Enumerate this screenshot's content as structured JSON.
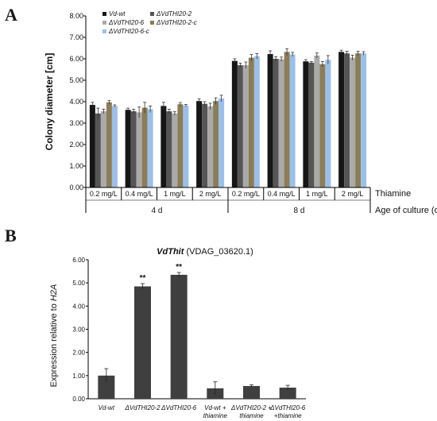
{
  "panels": {
    "a": "A",
    "b": "B"
  },
  "chart_data": [
    {
      "type": "bar",
      "ylabel": "Colony diameter [cm]",
      "ylim": [
        0,
        8
      ],
      "yticks": [
        "0.00",
        "1.00",
        "2.00",
        "3.00",
        "4.00",
        "5.00",
        "6.00",
        "7.00",
        "8.00"
      ],
      "categories": [
        "0.2 mg/L",
        "0.4 mg/L",
        "1 mg/L",
        "2 mg/L",
        "0.2 mg/L",
        "0.4 mg/L",
        "1 mg/L",
        "2 mg/L"
      ],
      "factor_label": "Thiamine",
      "groups": [
        "4 d",
        "8 d"
      ],
      "group_label": "Age of culture (days)",
      "legend_placement": "top-left",
      "series": [
        {
          "name": "Vd-wt",
          "color": "#161616",
          "values": [
            3.85,
            3.62,
            3.8,
            4.03,
            5.9,
            6.22,
            5.88,
            6.32
          ],
          "errors": [
            0.12,
            0.08,
            0.17,
            0.1,
            0.1,
            0.15,
            0.08,
            0.08
          ]
        },
        {
          "name": "ΔVdTHI20-2",
          "color": "#555555",
          "values": [
            3.45,
            3.55,
            3.55,
            3.9,
            5.7,
            6.0,
            5.82,
            6.25
          ],
          "errors": [
            0.25,
            0.1,
            0.1,
            0.1,
            0.1,
            0.1,
            0.05,
            0.1
          ]
        },
        {
          "name": "ΔVdTHI20-6",
          "color": "#aaaaaa",
          "values": [
            3.55,
            3.5,
            3.45,
            3.78,
            5.7,
            5.98,
            6.15,
            6.05
          ],
          "errors": [
            0.1,
            0.25,
            0.08,
            0.15,
            0.15,
            0.1,
            0.12,
            0.12
          ]
        },
        {
          "name": "ΔVdTHI20-2-c",
          "color": "#8b7d57",
          "values": [
            3.97,
            3.72,
            3.88,
            4.03,
            6.05,
            6.32,
            5.75,
            6.25
          ],
          "errors": [
            0.08,
            0.25,
            0.08,
            0.15,
            0.15,
            0.15,
            0.12,
            0.1
          ]
        },
        {
          "name": "ΔVdTHI20-6-c",
          "color": "#9bbfe8",
          "values": [
            3.8,
            3.65,
            3.82,
            4.15,
            6.12,
            6.2,
            5.95,
            6.25
          ],
          "errors": [
            0.05,
            0.15,
            0.05,
            0.15,
            0.12,
            0.1,
            0.2,
            0.08
          ]
        }
      ]
    },
    {
      "type": "bar",
      "title_italic": "VdThit",
      "title_rest": " (VDAG_03620.1)",
      "ylabel_main": "Expression relative to ",
      "ylabel_italic": "H2A",
      "ylim": [
        0,
        6
      ],
      "yticks": [
        "0.00",
        "1.00",
        "2.00",
        "3.00",
        "4.00",
        "5.00",
        "6.00"
      ],
      "categories": [
        [
          "Vd-wt"
        ],
        [
          "ΔVdTHI20-2"
        ],
        [
          "ΔVdTHI20-6"
        ],
        [
          "Vd-wt +",
          "thiamine"
        ],
        [
          "ΔVdTHI20-2 +",
          "thiamine"
        ],
        [
          "ΔVdTHI20-6",
          "+thiamine"
        ]
      ],
      "values": [
        1.0,
        4.85,
        5.35,
        0.45,
        0.55,
        0.48
      ],
      "errors": [
        0.3,
        0.12,
        0.1,
        0.28,
        0.05,
        0.1
      ],
      "significance": [
        "",
        "**",
        "**",
        "",
        "",
        ""
      ],
      "color": "#3f3f3f"
    }
  ]
}
